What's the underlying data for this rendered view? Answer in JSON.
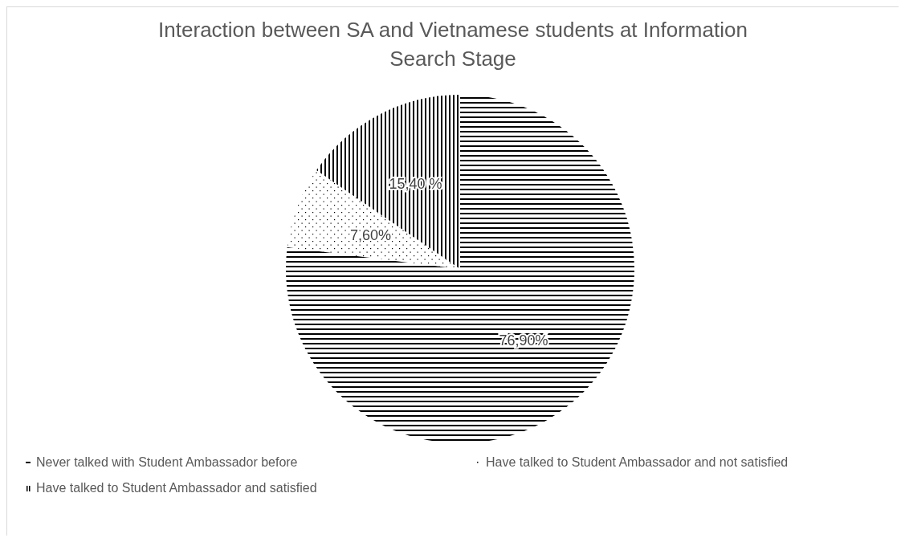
{
  "chart_data": {
    "type": "pie",
    "title": "Interaction between SA and Vietnamese students at Information Search Stage",
    "categories": [
      "Never talked with Student Ambassador before",
      "Have talked to Student Ambassador and not satisfied",
      "Have talked to Student Ambassador and satisfied"
    ],
    "values": [
      76.9,
      7.6,
      15.4
    ],
    "value_labels": [
      "76,90%",
      "7,60%",
      "15,40 %"
    ],
    "colors": [
      "#000000",
      "#000000",
      "#000000"
    ],
    "legend": "bottom"
  }
}
